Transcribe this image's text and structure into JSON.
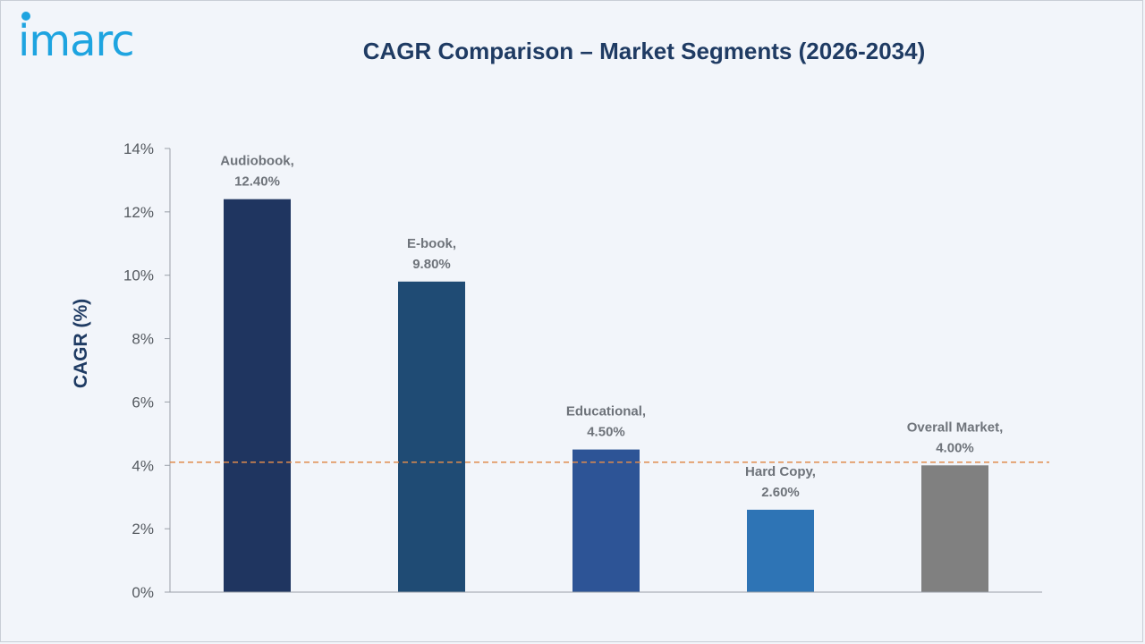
{
  "logo": {
    "text": "imarc"
  },
  "colors": {
    "logo": "#1ea4e0",
    "title": "#1f3b63",
    "axis": "#9aa0a8",
    "reference_line": "#e08b4c"
  },
  "chart_data": {
    "type": "bar",
    "title": "CAGR Comparison – Market Segments (2026-2034)",
    "xlabel": "",
    "ylabel": "CAGR (%)",
    "ylim": [
      0,
      14
    ],
    "yticks": [
      0,
      2,
      4,
      6,
      8,
      10,
      12,
      14
    ],
    "ytick_labels": [
      "0%",
      "2%",
      "4%",
      "6%",
      "8%",
      "10%",
      "12%",
      "14%"
    ],
    "categories": [
      "Audiobook",
      "E-book",
      "Educational",
      "Hard Copy",
      "Overall Market"
    ],
    "values": [
      12.4,
      9.8,
      4.5,
      2.6,
      4.0
    ],
    "data_labels": [
      [
        "Audiobook,",
        "12.40%"
      ],
      [
        "E-book,",
        "9.80%"
      ],
      [
        "Educational,",
        "4.50%"
      ],
      [
        "Hard Copy,",
        "2.60%"
      ],
      [
        "Overall Market,",
        "4.00%"
      ]
    ],
    "bar_colors": [
      "#1f3560",
      "#1f4b74",
      "#2d5496",
      "#2e74b5",
      "#808080"
    ],
    "reference_line": {
      "value": 4.1,
      "style": "dashed"
    },
    "grid": false,
    "legend": "none"
  }
}
